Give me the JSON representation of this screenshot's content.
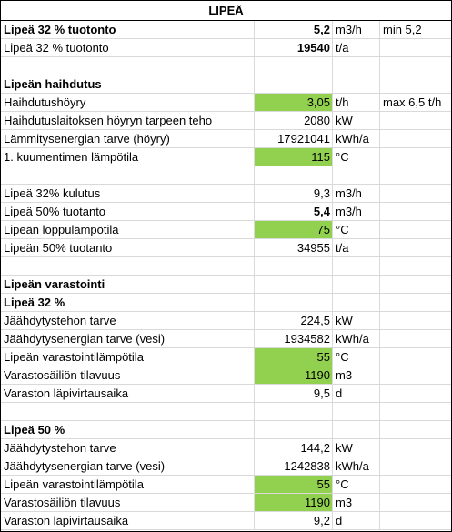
{
  "title": "LIPEÄ",
  "rows": [
    {
      "label": "Lipeä 32 % tuotonto",
      "value": "5,2",
      "unit": "m3/h",
      "note": "min 5,2",
      "bold": true,
      "green": false
    },
    {
      "label": "Lipeä 32 % tuotonto",
      "value": "19540",
      "unit": "t/a",
      "note": "",
      "bold": false,
      "valueBold": true,
      "green": false
    },
    {
      "label": "",
      "value": "",
      "unit": "",
      "note": ""
    },
    {
      "label": "Lipeän haihdutus",
      "value": "",
      "unit": "",
      "note": "",
      "bold": true
    },
    {
      "label": "Haihdutushöyry",
      "value": "3,05",
      "unit": "t/h",
      "note": "max 6,5 t/h",
      "green": true
    },
    {
      "label": "Haihdutuslaitoksen höyryn tarpeen teho",
      "value": "2080",
      "unit": "kW",
      "note": ""
    },
    {
      "label": "Lämmitysenergian tarve (höyry)",
      "value": "17921041",
      "unit": "kWh/a",
      "note": ""
    },
    {
      "label": "1. kuumentimen lämpötila",
      "value": "115",
      "unit": "°C",
      "note": "",
      "green": true
    },
    {
      "label": "",
      "value": "",
      "unit": "",
      "note": ""
    },
    {
      "label": "Lipeä 32% kulutus",
      "value": "9,3",
      "unit": "m3/h",
      "note": ""
    },
    {
      "label": "Lipeä 50% tuotanto",
      "value": "5,4",
      "unit": "m3/h",
      "note": "",
      "valueBold": true
    },
    {
      "label": "Lipeän loppulämpötila",
      "value": "75",
      "unit": "°C",
      "note": "",
      "green": true
    },
    {
      "label": "Lipeän 50% tuotanto",
      "value": "34955",
      "unit": "t/a",
      "note": ""
    },
    {
      "label": "",
      "value": "",
      "unit": "",
      "note": ""
    },
    {
      "label": "Lipeän varastointi",
      "value": "",
      "unit": "",
      "note": "",
      "bold": true
    },
    {
      "label": "Lipeä 32 %",
      "value": "",
      "unit": "",
      "note": "",
      "bold": true
    },
    {
      "label": "Jäähdytystehon tarve",
      "value": "224,5",
      "unit": "kW",
      "note": ""
    },
    {
      "label": "Jäähdytysenergian tarve (vesi)",
      "value": "1934582",
      "unit": "kWh/a",
      "note": ""
    },
    {
      "label": "Lipeän varastointilämpötila",
      "value": "55",
      "unit": "°C",
      "note": "",
      "green": true
    },
    {
      "label": "Varastosäiliön tilavuus",
      "value": "1190",
      "unit": "m3",
      "note": "",
      "green": true
    },
    {
      "label": "Varaston läpivirtausaika",
      "value": "9,5",
      "unit": "d",
      "note": ""
    },
    {
      "label": "",
      "value": "",
      "unit": "",
      "note": ""
    },
    {
      "label": "Lipeä 50 %",
      "value": "",
      "unit": "",
      "note": "",
      "bold": true
    },
    {
      "label": "Jäähdytystehon tarve",
      "value": "144,2",
      "unit": "kW",
      "note": ""
    },
    {
      "label": "Jäähdytysenergian tarve (vesi)",
      "value": "1242838",
      "unit": "kWh/a",
      "note": ""
    },
    {
      "label": "Lipeän varastointilämpötila",
      "value": "55",
      "unit": "°C",
      "note": "",
      "green": true
    },
    {
      "label": "Varastosäiliön tilavuus",
      "value": "1190",
      "unit": "m3",
      "note": "",
      "green": true
    },
    {
      "label": "Varaston läpivirtausaika",
      "value": "9,2",
      "unit": "d",
      "note": ""
    }
  ]
}
